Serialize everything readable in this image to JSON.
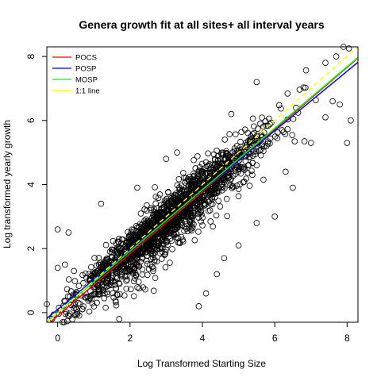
{
  "chart_data": {
    "type": "scatter",
    "title": "Genera growth fit at all sites+ all interval years",
    "xlabel": "Log Transformed Starting Size",
    "ylabel": "Log transformed yearly growth",
    "xlim": [
      -0.3,
      8.3
    ],
    "ylim": [
      -0.3,
      8.3
    ],
    "x_ticks": [
      0,
      2,
      4,
      6,
      8
    ],
    "y_ticks": [
      0,
      2,
      4,
      6,
      8
    ],
    "point_style": "open circle, black",
    "point_cloud": {
      "approx_n": 1900,
      "trend_slope": 0.98,
      "trend_intercept": 0.0,
      "spread_sd": 0.33,
      "x_range": [
        -0.3,
        8.3
      ]
    },
    "outliers": [
      {
        "x": 0.0,
        "y": 2.6
      },
      {
        "x": 0.3,
        "y": 2.5
      },
      {
        "x": 1.2,
        "y": 3.4
      },
      {
        "x": 0.2,
        "y": 1.5
      },
      {
        "x": 0.45,
        "y": 1.3
      },
      {
        "x": 0.0,
        "y": 1.4
      },
      {
        "x": 1.7,
        "y": -0.2
      },
      {
        "x": 0.5,
        "y": -0.05
      },
      {
        "x": 1.3,
        "y": 0.6
      },
      {
        "x": 2.2,
        "y": 3.9
      },
      {
        "x": 2.0,
        "y": 1.3
      },
      {
        "x": 3.0,
        "y": 4.8
      },
      {
        "x": 3.3,
        "y": 5.0
      },
      {
        "x": 3.9,
        "y": 0.2
      },
      {
        "x": 4.1,
        "y": 0.6
      },
      {
        "x": 4.4,
        "y": 1.2
      },
      {
        "x": 4.6,
        "y": 1.7
      },
      {
        "x": 5.0,
        "y": 2.1
      },
      {
        "x": 5.5,
        "y": 2.8
      },
      {
        "x": 4.8,
        "y": 6.2
      },
      {
        "x": 5.5,
        "y": 7.2
      },
      {
        "x": 6.0,
        "y": 3.0
      },
      {
        "x": 6.3,
        "y": 4.4
      },
      {
        "x": 6.5,
        "y": 3.9
      },
      {
        "x": 7.0,
        "y": 5.3
      },
      {
        "x": 7.4,
        "y": 6.1
      },
      {
        "x": 7.6,
        "y": 6.6
      },
      {
        "x": 7.8,
        "y": 6.5
      },
      {
        "x": 8.0,
        "y": 5.3
      },
      {
        "x": 8.1,
        "y": 6.0
      },
      {
        "x": 7.4,
        "y": 7.8
      },
      {
        "x": 7.7,
        "y": 8.0
      },
      {
        "x": 7.9,
        "y": 8.3
      },
      {
        "x": 8.05,
        "y": 8.25
      },
      {
        "x": 5.6,
        "y": 5.9
      },
      {
        "x": 6.2,
        "y": 5.7
      }
    ],
    "series": [
      {
        "name": "POCS",
        "kind": "line",
        "color": "#ff0000",
        "intercept": -0.1,
        "slope": 0.97
      },
      {
        "name": "POSP",
        "kind": "line",
        "color": "#0000ff",
        "intercept": 0.1,
        "slope": 0.93
      },
      {
        "name": "MOSP",
        "kind": "line",
        "color": "#00ff00",
        "intercept": 0.0,
        "slope": 0.96
      },
      {
        "name": "1:1 line",
        "kind": "line",
        "color": "#ffff00",
        "dashed": true,
        "intercept": 0.0,
        "slope": 1.0
      }
    ],
    "legend_position": "top-left",
    "grid": false
  }
}
